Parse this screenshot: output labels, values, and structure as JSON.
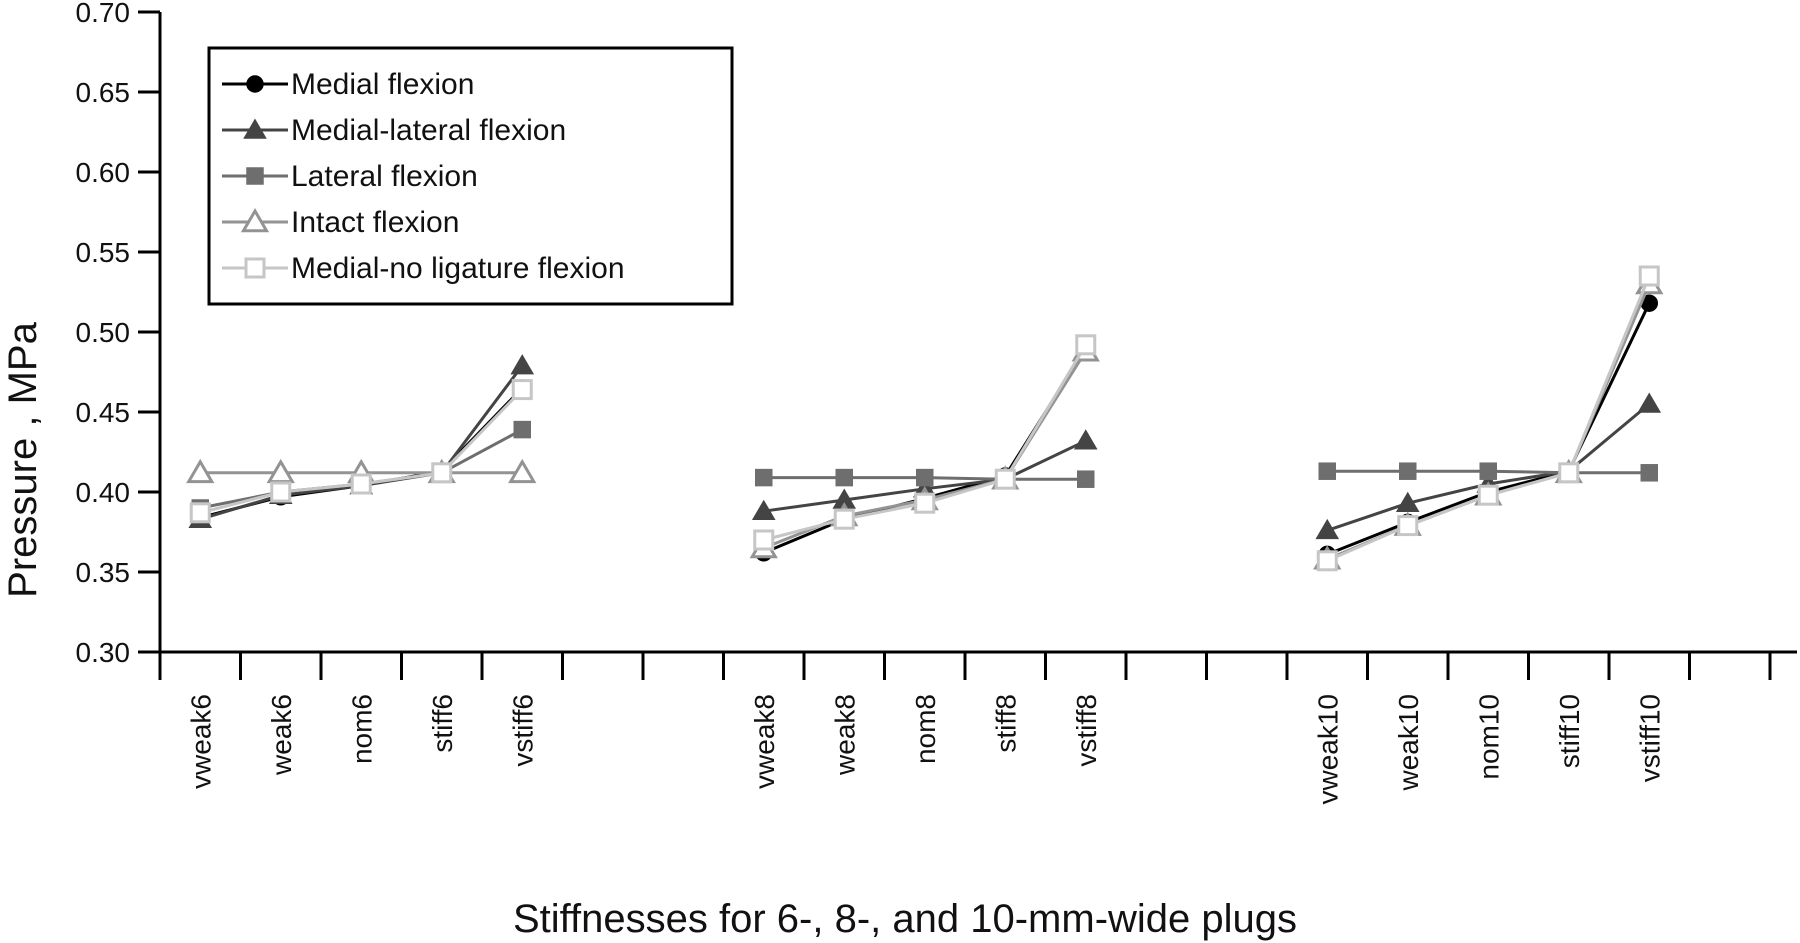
{
  "chart_data": {
    "type": "line",
    "title": "",
    "xlabel": "Stiffnesses for 6-, 8-, and 10-mm-wide plugs",
    "ylabel": "Pressure , MPa",
    "ylim": [
      0.3,
      0.7
    ],
    "yticks": [
      "0.30",
      "0.35",
      "0.40",
      "0.45",
      "0.50",
      "0.55",
      "0.60",
      "0.65",
      "0.70"
    ],
    "grid": false,
    "legend_position": "top-left",
    "groups": [
      {
        "categories": [
          "vweak6",
          "weak6",
          "nom6",
          "stiff6",
          "vstiff6"
        ],
        "slot_start": 0
      },
      {
        "categories": [
          "vweak8",
          "weak8",
          "nom8",
          "stiff8",
          "vstiff8"
        ],
        "slot_start": 7
      },
      {
        "categories": [
          "vweak10",
          "weak10",
          "nom10",
          "stiff10",
          "vstiff10"
        ],
        "slot_start": 14
      }
    ],
    "total_slots": 20,
    "series": [
      {
        "name": "Medial flexion",
        "marker": "circle",
        "filled": true,
        "color": "#000000",
        "values": [
          [
            0.384,
            0.397,
            0.404,
            0.413,
            0.465
          ],
          [
            0.362,
            0.383,
            0.396,
            0.41,
            0.49
          ],
          [
            0.361,
            0.381,
            0.4,
            0.413,
            0.518
          ]
        ]
      },
      {
        "name": "Medial-lateral flexion",
        "marker": "triangle",
        "filled": true,
        "color": "#444444",
        "values": [
          [
            0.383,
            0.398,
            0.404,
            0.412,
            0.479
          ],
          [
            0.388,
            0.395,
            0.402,
            0.408,
            0.432
          ],
          [
            0.376,
            0.393,
            0.405,
            0.413,
            0.455
          ]
        ]
      },
      {
        "name": "Lateral flexion",
        "marker": "square",
        "filled": true,
        "color": "#6e6e6e",
        "values": [
          [
            0.39,
            0.4,
            0.405,
            0.412,
            0.439
          ],
          [
            0.409,
            0.409,
            0.409,
            0.408,
            0.408
          ],
          [
            0.413,
            0.413,
            0.413,
            0.412,
            0.412
          ]
        ]
      },
      {
        "name": "Intact flexion",
        "marker": "triangle",
        "filled": false,
        "color": "#939393",
        "values": [
          [
            0.412,
            0.412,
            0.412,
            0.412,
            0.412
          ],
          [
            0.365,
            0.385,
            0.395,
            0.408,
            0.488
          ],
          [
            0.358,
            0.379,
            0.398,
            0.412,
            0.53
          ]
        ]
      },
      {
        "name": "Medial-no ligature flexion",
        "marker": "square",
        "filled": false,
        "color": "#c6c6c6",
        "values": [
          [
            0.387,
            0.4,
            0.405,
            0.412,
            0.464
          ],
          [
            0.37,
            0.383,
            0.393,
            0.408,
            0.492
          ],
          [
            0.357,
            0.379,
            0.398,
            0.412,
            0.535
          ]
        ]
      }
    ]
  }
}
